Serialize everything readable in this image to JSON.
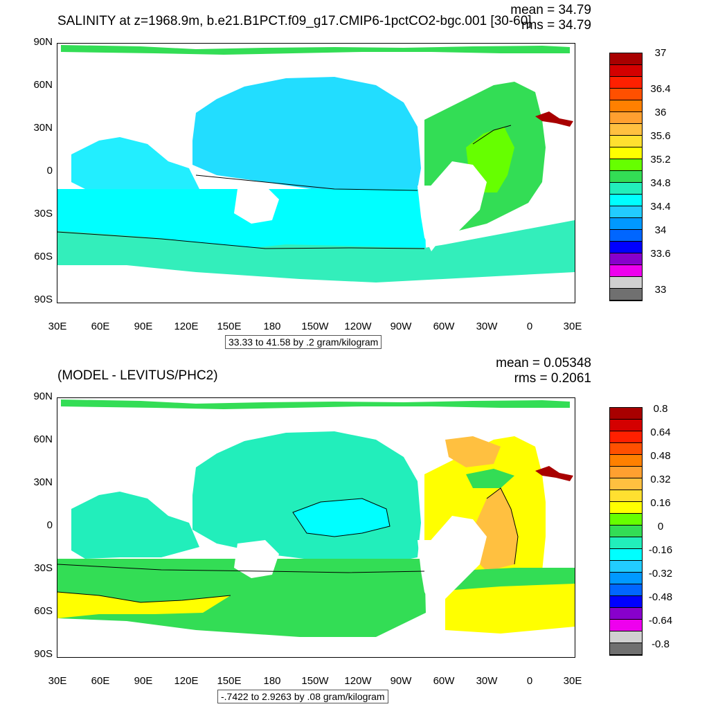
{
  "panels": [
    {
      "title": "SALINITY at z=1968.9m, b.e21.B1PCT.f09_g17.CMIP6-1pctCO2-bgc.001 [30-60]",
      "mean_text": "mean = 34.79",
      "rms_text": "rms = 34.79",
      "info_text": "33.33 to 41.58 by .2 gram/kilogram",
      "y_ticks": [
        "90N",
        "60N",
        "30N",
        "0",
        "30S",
        "60S",
        "90S"
      ],
      "x_ticks": [
        "30E",
        "60E",
        "90E",
        "120E",
        "150E",
        "180",
        "150W",
        "120W",
        "90W",
        "60W",
        "30W",
        "0",
        "30E"
      ],
      "colorbar": {
        "colors": [
          "#a80000",
          "#d40000",
          "#ff2000",
          "#ff5000",
          "#ff8000",
          "#ffa030",
          "#ffc040",
          "#ffe030",
          "#ffff00",
          "#66ff00",
          "#33dd55",
          "#22eebb",
          "#00ffff",
          "#22ccff",
          "#0099ff",
          "#0066ff",
          "#0000ff",
          "#8800cc",
          "#ee00ee",
          "#d0d0d0",
          "#707070"
        ],
        "labels": [
          "37",
          "36.4",
          "36",
          "35.6",
          "35.2",
          "34.8",
          "34.4",
          "34",
          "33.6",
          "33"
        ]
      }
    },
    {
      "title": "(MODEL - LEVITUS/PHC2)",
      "mean_text": "mean = 0.05348",
      "rms_text": "rms = 0.2061",
      "info_text": "-.7422 to 2.9263 by .08 gram/kilogram",
      "y_ticks": [
        "90N",
        "60N",
        "30N",
        "0",
        "30S",
        "60S",
        "90S"
      ],
      "x_ticks": [
        "30E",
        "60E",
        "90E",
        "120E",
        "150E",
        "180",
        "150W",
        "120W",
        "90W",
        "60W",
        "30W",
        "0",
        "30E"
      ],
      "colorbar": {
        "colors": [
          "#a80000",
          "#d40000",
          "#ff2000",
          "#ff5000",
          "#ff8000",
          "#ffa030",
          "#ffc040",
          "#ffe030",
          "#ffff00",
          "#66ff00",
          "#33dd55",
          "#22eebb",
          "#00ffff",
          "#22ccff",
          "#0099ff",
          "#0066ff",
          "#0000ff",
          "#8800cc",
          "#ee00ee",
          "#d0d0d0",
          "#707070"
        ],
        "labels": [
          "0.8",
          "0.64",
          "0.48",
          "0.32",
          "0.16",
          "0",
          "-0.16",
          "-0.32",
          "-0.48",
          "-0.64",
          "-0.8"
        ]
      }
    }
  ]
}
